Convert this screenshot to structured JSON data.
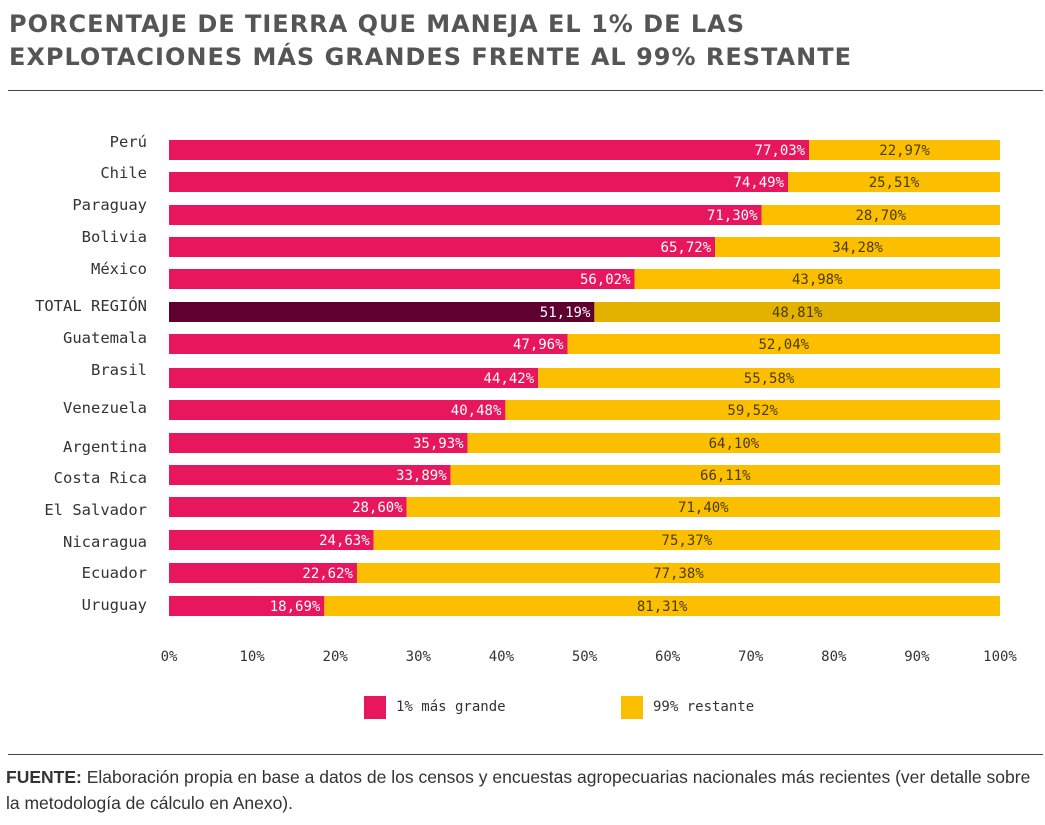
{
  "header": {
    "title_line1": "PORCENTAJE DE TIERRA QUE MANEJA EL 1% DE LAS",
    "title_line2": "EXPLOTACIONES MÁS GRANDES FRENTE AL 99% RESTANTE"
  },
  "chart_data": {
    "type": "bar",
    "orientation": "horizontal",
    "stacked": true,
    "title": "PORCENTAJE DE TIERRA QUE MANEJA EL 1% DE LAS EXPLOTACIONES MÁS GRANDES FRENTE AL 99% RESTANTE",
    "categories": [
      "Perú",
      "Chile",
      "Paraguay",
      "Bolivia",
      "México",
      "TOTAL REGIÓN",
      "Guatemala",
      "Brasil",
      "Venezuela",
      "Argentina",
      "Costa Rica",
      "El Salvador",
      "Nicaragua",
      "Ecuador",
      "Uruguay"
    ],
    "highlight_category": "TOTAL REGIÓN",
    "series": [
      {
        "name": "1% más grande",
        "color": "#e8175d",
        "highlight_color": "#5e0030",
        "values": [
          77.03,
          74.49,
          71.3,
          65.72,
          56.02,
          51.19,
          47.96,
          44.42,
          40.48,
          35.93,
          33.89,
          28.6,
          24.63,
          22.62,
          18.69
        ],
        "labels": [
          "77,03%",
          "74,49%",
          "71,30%",
          "65,72%",
          "56,02%",
          "51,19%",
          "47,96%",
          "44,42%",
          "40,48%",
          "35,93%",
          "33,89%",
          "28,60%",
          "24,63%",
          "22,62%",
          "18,69%"
        ]
      },
      {
        "name": "99% restante",
        "color": "#fbbf00",
        "highlight_color": "#e3b200",
        "values": [
          22.97,
          25.51,
          28.7,
          34.28,
          43.98,
          48.81,
          52.04,
          55.58,
          59.52,
          64.1,
          66.11,
          71.4,
          75.37,
          77.38,
          81.31
        ],
        "labels": [
          "22,97%",
          "25,51%",
          "28,70%",
          "34,28%",
          "43,98%",
          "48,81%",
          "52,04%",
          "55,58%",
          "59,52%",
          "64,10%",
          "66,11%",
          "71,40%",
          "75,37%",
          "77,38%",
          "81,31%"
        ]
      }
    ],
    "x_ticks": [
      0,
      10,
      20,
      30,
      40,
      50,
      60,
      70,
      80,
      90,
      100
    ],
    "x_tick_labels": [
      "0%",
      "10%",
      "20%",
      "30%",
      "40%",
      "50%",
      "60%",
      "70%",
      "80%",
      "90%",
      "100%"
    ],
    "xlim": [
      0,
      100
    ],
    "xlabel": "",
    "ylabel": "",
    "grid": false,
    "legend": "bottom"
  },
  "legend": {
    "items": [
      {
        "label": "1% más grande",
        "color": "#e8175d"
      },
      {
        "label": "99% restante",
        "color": "#fbbf00"
      }
    ]
  },
  "source": {
    "label": "FUENTE:",
    "text": " Elaboración propia en base a datos de los censos y encuestas agropecuarias nacionales más recientes (ver detalle sobre la metodología de cálculo en Anexo)."
  }
}
